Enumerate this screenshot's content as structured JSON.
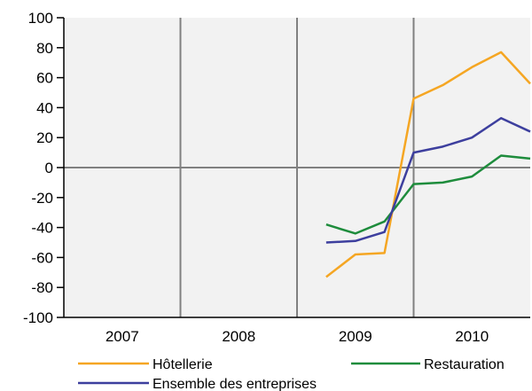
{
  "colors": {
    "plot_background": "#f2f2f2",
    "grid": "#808080",
    "axis": "#000000",
    "hotellerie": "#f5a623",
    "restauration": "#1e8c3c",
    "ensemble": "#3d3f9e"
  },
  "chart_data": {
    "type": "line",
    "title": "",
    "xlabel": "",
    "ylabel": "",
    "ylim": [
      -100,
      100
    ],
    "y_ticks": [
      100,
      80,
      60,
      40,
      20,
      0,
      -20,
      -40,
      -60,
      -80,
      -100
    ],
    "x_categories": [
      "2007",
      "2008",
      "2009",
      "2010"
    ],
    "x_range_quarters": [
      2006.5,
      2010.5
    ],
    "grid": "vertical lines between years, horizontal line at 0",
    "legend_position": "bottom",
    "series": [
      {
        "name": "Hôtellerie",
        "color_key": "hotellerie",
        "x": [
          2008.75,
          2009.0,
          2009.25,
          2009.5,
          2009.75,
          2010.0,
          2010.25,
          2010.5
        ],
        "y": [
          -73,
          -58,
          -57,
          46,
          55,
          67,
          77,
          56
        ]
      },
      {
        "name": "Restauration",
        "color_key": "restauration",
        "x": [
          2008.75,
          2009.0,
          2009.25,
          2009.5,
          2009.75,
          2010.0,
          2010.25,
          2010.5
        ],
        "y": [
          -38,
          -44,
          -36,
          -11,
          -10,
          -6,
          8,
          6
        ]
      },
      {
        "name": "Ensemble des entreprises",
        "color_key": "ensemble",
        "x": [
          2008.75,
          2009.0,
          2009.25,
          2009.5,
          2009.75,
          2010.0,
          2010.25,
          2010.5
        ],
        "y": [
          -50,
          -49,
          -43,
          10,
          14,
          20,
          33,
          24
        ]
      }
    ]
  }
}
